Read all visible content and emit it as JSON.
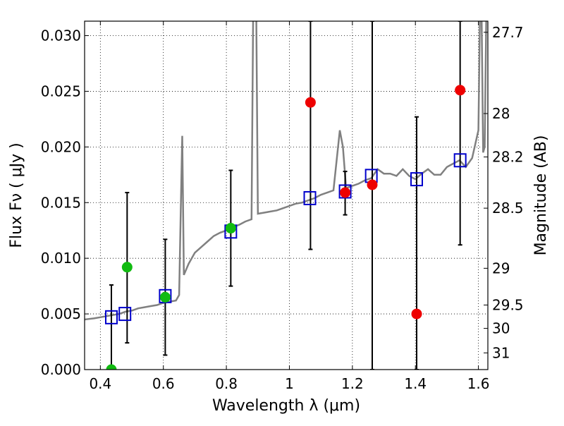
{
  "chart_data": {
    "type": "scatter",
    "xlabel": "Wavelength  λ (μm)",
    "ylabel": "Flux  Fν  ( μJy )",
    "y2label": "Magnitude (AB)",
    "xlim": [
      0.35,
      1.63
    ],
    "ylim": [
      0.0,
      0.0313
    ],
    "grid": true,
    "x_ticks": [
      0.4,
      0.6,
      0.8,
      1.0,
      1.2,
      1.4,
      1.6
    ],
    "x_tick_labels": [
      "0.4",
      "0.6",
      "0.8",
      "1",
      "1.2",
      "1.4",
      "1.6"
    ],
    "y_ticks": [
      0.0,
      0.005,
      0.01,
      0.015,
      0.02,
      0.025,
      0.03
    ],
    "y_tick_labels": [
      "0.000",
      "0.005",
      "0.010",
      "0.015",
      "0.020",
      "0.025",
      "0.030"
    ],
    "y2_ticks": [
      {
        "label": "27.7",
        "flux": 0.0303
      },
      {
        "label": "28",
        "flux": 0.023
      },
      {
        "label": "28.2",
        "flux": 0.0191
      },
      {
        "label": "28.5",
        "flux": 0.0145
      },
      {
        "label": "29",
        "flux": 0.0091
      },
      {
        "label": "29.5",
        "flux": 0.0058
      },
      {
        "label": "30",
        "flux": 0.0037
      },
      {
        "label": "31",
        "flux": 0.0015
      }
    ],
    "colors": {
      "template": "#808080",
      "model": "#0000cc",
      "green": "#11bb11",
      "red": "#ee0000",
      "errorbar": "#000000"
    },
    "template_spectrum": [
      [
        0.35,
        0.0045
      ],
      [
        0.38,
        0.0046
      ],
      [
        0.4,
        0.0047
      ],
      [
        0.42,
        0.0048
      ],
      [
        0.44,
        0.0049
      ],
      [
        0.46,
        0.005
      ],
      [
        0.48,
        0.0052
      ],
      [
        0.5,
        0.0053
      ],
      [
        0.52,
        0.0055
      ],
      [
        0.54,
        0.0056
      ],
      [
        0.56,
        0.0057
      ],
      [
        0.58,
        0.0058
      ],
      [
        0.6,
        0.006
      ],
      [
        0.62,
        0.0061
      ],
      [
        0.64,
        0.0062
      ],
      [
        0.65,
        0.0067
      ],
      [
        0.655,
        0.014
      ],
      [
        0.66,
        0.021
      ],
      [
        0.665,
        0.0085
      ],
      [
        0.68,
        0.0095
      ],
      [
        0.7,
        0.0105
      ],
      [
        0.72,
        0.011
      ],
      [
        0.74,
        0.0115
      ],
      [
        0.76,
        0.012
      ],
      [
        0.78,
        0.0123
      ],
      [
        0.8,
        0.0125
      ],
      [
        0.82,
        0.0128
      ],
      [
        0.84,
        0.013
      ],
      [
        0.86,
        0.0133
      ],
      [
        0.88,
        0.0135
      ],
      [
        0.885,
        0.032
      ],
      [
        0.895,
        0.032
      ],
      [
        0.9,
        0.014
      ],
      [
        0.92,
        0.0141
      ],
      [
        0.94,
        0.0142
      ],
      [
        0.96,
        0.0143
      ],
      [
        0.98,
        0.0145
      ],
      [
        1.0,
        0.0147
      ],
      [
        1.02,
        0.0149
      ],
      [
        1.04,
        0.015
      ],
      [
        1.06,
        0.0152
      ],
      [
        1.08,
        0.0154
      ],
      [
        1.1,
        0.0157
      ],
      [
        1.12,
        0.0159
      ],
      [
        1.14,
        0.0161
      ],
      [
        1.16,
        0.0215
      ],
      [
        1.17,
        0.02
      ],
      [
        1.18,
        0.0163
      ],
      [
        1.2,
        0.0165
      ],
      [
        1.22,
        0.0167
      ],
      [
        1.24,
        0.017
      ],
      [
        1.26,
        0.0172
      ],
      [
        1.28,
        0.018
      ],
      [
        1.3,
        0.0176
      ],
      [
        1.32,
        0.0176
      ],
      [
        1.34,
        0.0174
      ],
      [
        1.36,
        0.018
      ],
      [
        1.38,
        0.0174
      ],
      [
        1.4,
        0.0171
      ],
      [
        1.42,
        0.0176
      ],
      [
        1.44,
        0.018
      ],
      [
        1.46,
        0.0175
      ],
      [
        1.48,
        0.0175
      ],
      [
        1.5,
        0.0182
      ],
      [
        1.52,
        0.0185
      ],
      [
        1.54,
        0.0188
      ],
      [
        1.56,
        0.0182
      ],
      [
        1.58,
        0.019
      ],
      [
        1.6,
        0.0215
      ],
      [
        1.605,
        0.032
      ],
      [
        1.61,
        0.032
      ],
      [
        1.615,
        0.0195
      ],
      [
        1.62,
        0.02
      ],
      [
        1.625,
        0.032
      ],
      [
        1.63,
        0.032
      ]
    ],
    "model_fluxes": [
      {
        "x": 0.435,
        "y": 0.0047
      },
      {
        "x": 0.478,
        "y": 0.005
      },
      {
        "x": 0.606,
        "y": 0.0066
      },
      {
        "x": 0.814,
        "y": 0.0124
      },
      {
        "x": 1.065,
        "y": 0.0154
      },
      {
        "x": 1.177,
        "y": 0.016
      },
      {
        "x": 1.26,
        "y": 0.0174
      },
      {
        "x": 1.404,
        "y": 0.0171
      },
      {
        "x": 1.542,
        "y": 0.0188
      }
    ],
    "observed_green": [
      {
        "x": 0.435,
        "y": 0.0,
        "err_low": 0.0,
        "err_high": 0.0076
      },
      {
        "x": 0.485,
        "y": 0.0092,
        "err_low": 0.0024,
        "err_high": 0.0159
      },
      {
        "x": 0.606,
        "y": 0.0065,
        "err_low": 0.0013,
        "err_high": 0.0117
      },
      {
        "x": 0.814,
        "y": 0.0127,
        "err_low": 0.0075,
        "err_high": 0.0179
      }
    ],
    "observed_red": [
      {
        "x": 1.067,
        "y": 0.024,
        "err_low": 0.0108,
        "err_high": 0.0313
      },
      {
        "x": 1.177,
        "y": 0.0159,
        "err_low": 0.0139,
        "err_high": 0.0178
      },
      {
        "x": 1.263,
        "y": 0.0166,
        "err_low": 0.0,
        "err_high": 0.0313
      },
      {
        "x": 1.404,
        "y": 0.005,
        "err_low": 0.0,
        "err_high": 0.0227
      },
      {
        "x": 1.542,
        "y": 0.0251,
        "err_low": 0.0112,
        "err_high": 0.0313
      }
    ]
  }
}
